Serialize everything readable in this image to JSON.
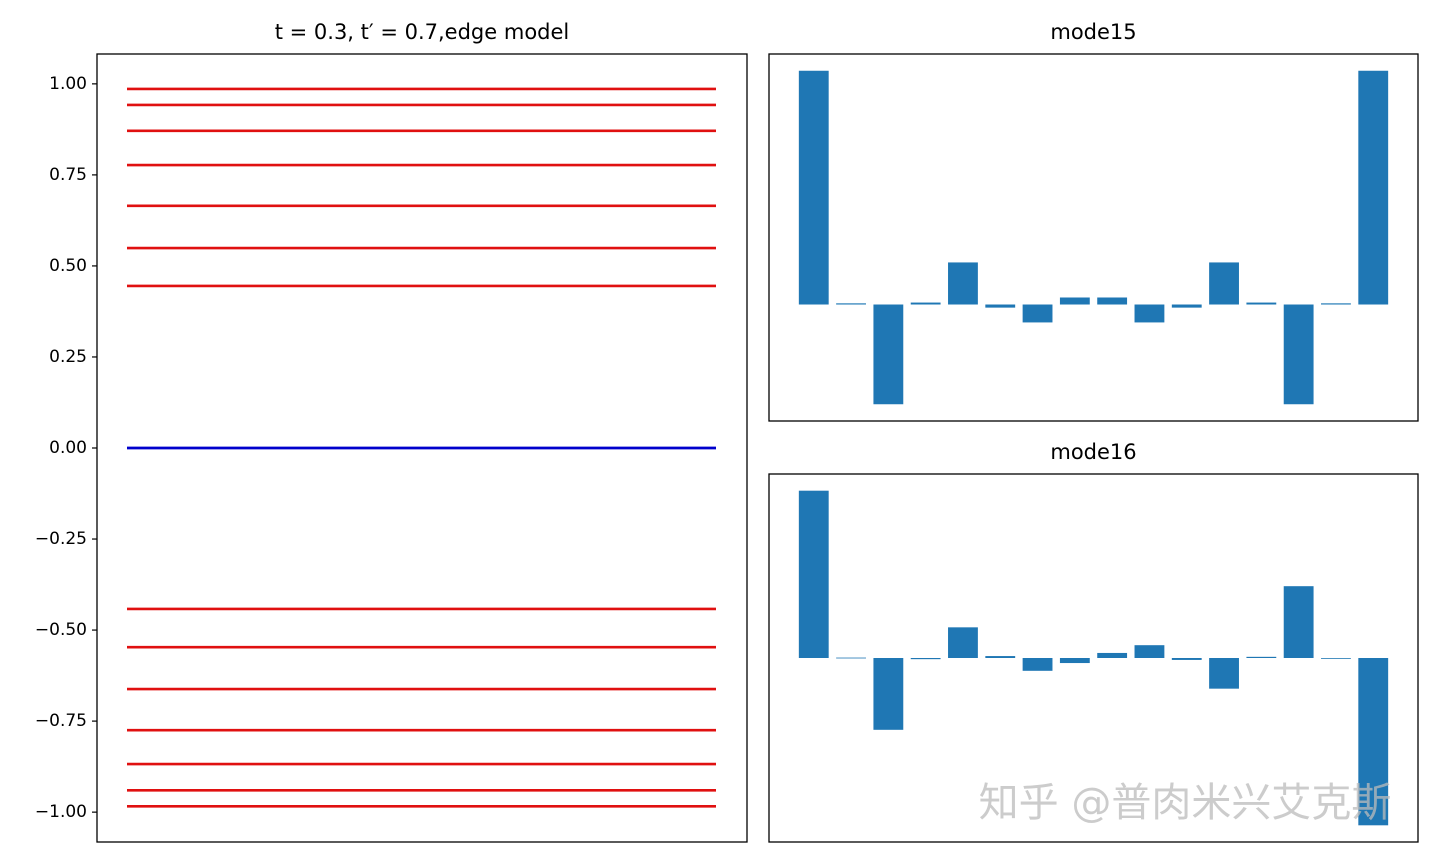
{
  "chart_data": [
    {
      "type": "hlines",
      "title": "t = 0.3, t′ = 0.7,edge model",
      "series": [
        {
          "color": "#e01010",
          "values": [
            0.986,
            0.942,
            0.871,
            0.777,
            0.665,
            0.549,
            0.445,
            -0.442,
            -0.547,
            -0.662,
            -0.775,
            -0.868,
            -0.94,
            -0.984
          ]
        },
        {
          "color": "#0000cc",
          "values": [
            0,
            0
          ]
        }
      ],
      "ylim": [
        -1.082,
        1.082
      ],
      "yticks": [
        {
          "value": -1,
          "label": "−1.00"
        },
        {
          "value": -0.75,
          "label": "−0.75"
        },
        {
          "value": -0.5,
          "label": "−0.50"
        },
        {
          "value": -0.25,
          "label": "−0.25"
        },
        {
          "value": 0,
          "label": "0.00"
        },
        {
          "value": 0.25,
          "label": "0.25"
        },
        {
          "value": 0.5,
          "label": "0.50"
        },
        {
          "value": 0.75,
          "label": "0.75"
        },
        {
          "value": 1,
          "label": "1.00"
        }
      ]
    },
    {
      "type": "bar",
      "title": "mode15",
      "color": "#1f77b4",
      "values": [
        0.6,
        0.003,
        -0.256,
        0.005,
        0.108,
        -0.008,
        -0.046,
        0.018,
        0.018,
        -0.046,
        -0.008,
        0.108,
        0.005,
        -0.256,
        0.003,
        0.6
      ],
      "ylim": [
        -0.299,
        0.643
      ]
    },
    {
      "type": "bar",
      "title": "mode16",
      "color": "#1f77b4",
      "values": [
        0.431,
        0.001,
        -0.185,
        -0.003,
        0.079,
        0.005,
        -0.033,
        -0.013,
        0.013,
        0.033,
        -0.005,
        -0.079,
        0.003,
        0.185,
        -0.001,
        -0.431
      ],
      "ylim": [
        -0.474,
        0.474
      ]
    }
  ],
  "watermark": "知乎 @普肉米兴艾克斯"
}
